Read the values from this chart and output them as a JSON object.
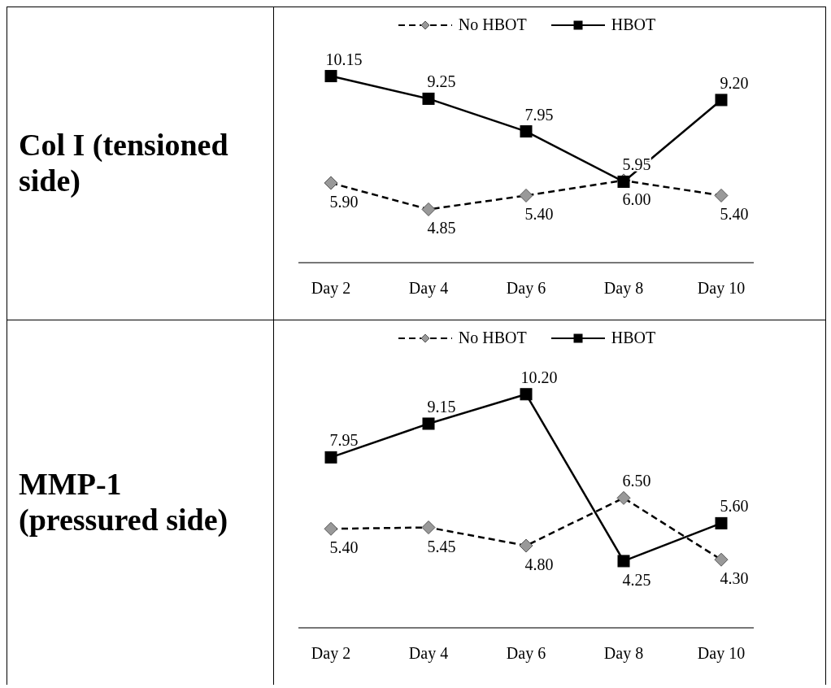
{
  "chart_data": [
    {
      "type": "line",
      "title": "Col I (tensioned side)",
      "categories": [
        "Day 2",
        "Day 4",
        "Day 6",
        "Day 8",
        "Day 10"
      ],
      "legend": "top",
      "grid": false,
      "series": [
        {
          "name": "No HBOT",
          "color": "#999999",
          "marker": "diamond",
          "line_style": "dashed",
          "values": [
            5.9,
            4.85,
            5.4,
            6.0,
            5.4
          ],
          "value_labels": [
            "5.90",
            "4.85",
            "5.40",
            "6.00",
            "5.40"
          ]
        },
        {
          "name": "HBOT",
          "color": "#000000",
          "marker": "square",
          "line_style": "solid",
          "values": [
            10.15,
            9.25,
            7.95,
            5.95,
            9.2
          ],
          "value_labels": [
            "10.15",
            "9.25",
            "7.95",
            "5.95",
            "9.20"
          ]
        }
      ]
    },
    {
      "type": "line",
      "title": "MMP-1 (pressured side)",
      "categories": [
        "Day 2",
        "Day 4",
        "Day 6",
        "Day 8",
        "Day 10"
      ],
      "legend": "top",
      "grid": false,
      "series": [
        {
          "name": "No HBOT",
          "color": "#999999",
          "marker": "diamond",
          "line_style": "dashed",
          "values": [
            5.4,
            5.45,
            4.8,
            6.5,
            4.3
          ],
          "value_labels": [
            "5.40",
            "5.45",
            "4.80",
            "6.50",
            "4.30"
          ]
        },
        {
          "name": "HBOT",
          "color": "#000000",
          "marker": "square",
          "line_style": "solid",
          "values": [
            7.95,
            9.15,
            10.2,
            4.25,
            5.6
          ],
          "value_labels": [
            "7.95",
            "9.15",
            "10.20",
            "4.25",
            "5.60"
          ]
        }
      ]
    }
  ]
}
